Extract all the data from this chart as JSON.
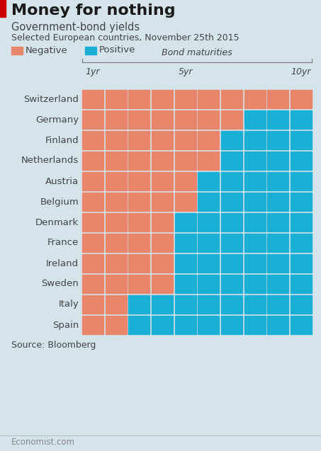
{
  "title": "Money for nothing",
  "subtitle1": "Government-bond yields",
  "subtitle2": "Selected European countries, November 25th 2015",
  "source": "Source: Bloomberg",
  "footer": "Economist.com",
  "negative_color": "#E8856A",
  "positive_color": "#1AAFD4",
  "background_color": "#D5E3EB",
  "red_bar_color": "#CC0000",
  "title_color": "#1A1A1A",
  "label_color": "#444444",
  "footer_color": "#888888",
  "bracket_color": "#777777",
  "countries": [
    "Switzerland",
    "Germany",
    "Finland",
    "Netherlands",
    "Austria",
    "Belgium",
    "Denmark",
    "France",
    "Ireland",
    "Sweden",
    "Italy",
    "Spain"
  ],
  "n_negative": [
    10,
    7,
    6,
    6,
    5,
    5,
    4,
    4,
    4,
    4,
    2,
    2
  ],
  "total_cells": 10,
  "bond_maturities_label": "Bond maturities",
  "col_labels": [
    [
      "1yr",
      0
    ],
    [
      "5yr",
      4
    ],
    [
      "10yr",
      9
    ]
  ],
  "legend_negative": "Negative",
  "legend_positive": "Positive"
}
